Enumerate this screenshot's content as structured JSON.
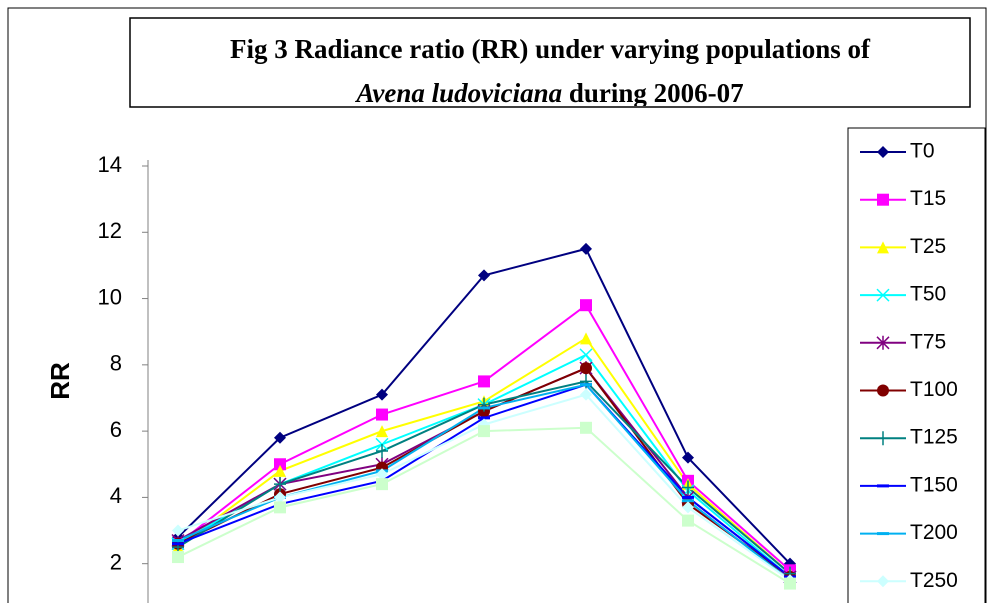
{
  "chart_data": {
    "type": "line",
    "title_lines": [
      "Fig 3 Radiance ratio (RR) under varying populations of",
      [
        "Avena ludoviciana",
        " during 2006-07"
      ]
    ],
    "ylabel": "RR",
    "categories": [
      null,
      null,
      null,
      null,
      null,
      null,
      null
    ],
    "ylim": [
      0,
      14
    ],
    "yticks": [
      2,
      4,
      6,
      8,
      10,
      12,
      14
    ],
    "series": [
      {
        "name": "T0",
        "color": "#000080",
        "marker": "diamond",
        "values": [
          2.8,
          5.8,
          7.1,
          10.7,
          11.5,
          5.2,
          2.0
        ]
      },
      {
        "name": "T15",
        "color": "#ff00ff",
        "marker": "square",
        "values": [
          2.6,
          5.0,
          6.5,
          7.5,
          9.8,
          4.5,
          1.8
        ]
      },
      {
        "name": "T25",
        "color": "#ffff00",
        "marker": "triangle",
        "values": [
          2.5,
          4.8,
          6.0,
          6.9,
          8.8,
          4.4,
          1.7
        ]
      },
      {
        "name": "T50",
        "color": "#00ffff",
        "marker": "x",
        "values": [
          2.6,
          4.4,
          5.6,
          6.8,
          8.3,
          4.2,
          1.6
        ]
      },
      {
        "name": "T75",
        "color": "#800080",
        "marker": "star",
        "values": [
          2.7,
          4.4,
          5.0,
          6.6,
          7.9,
          4.0,
          1.6
        ]
      },
      {
        "name": "T100",
        "color": "#800000",
        "marker": "circle",
        "values": [
          2.6,
          4.1,
          4.9,
          6.6,
          7.9,
          3.8,
          1.6
        ]
      },
      {
        "name": "T125",
        "color": "#008080",
        "marker": "plus",
        "values": [
          2.5,
          4.4,
          5.4,
          6.8,
          7.5,
          4.3,
          1.7
        ]
      },
      {
        "name": "T150",
        "color": "#0000ff",
        "marker": "dash",
        "values": [
          2.6,
          3.8,
          4.5,
          6.4,
          7.4,
          4.0,
          1.6
        ]
      },
      {
        "name": "T200",
        "color": "#00b0f0",
        "marker": "dash",
        "values": [
          2.7,
          4.0,
          4.8,
          6.7,
          7.4,
          3.9,
          1.5
        ]
      },
      {
        "name": "T250",
        "color": "#ccffff",
        "marker": "diamond",
        "values": [
          3.0,
          4.0,
          4.7,
          6.2,
          7.1,
          3.7,
          1.5
        ]
      },
      {
        "color": "#ccffcc",
        "marker": "square",
        "values": [
          2.2,
          3.7,
          4.4,
          6.0,
          6.1,
          3.3,
          1.4
        ]
      }
    ]
  }
}
